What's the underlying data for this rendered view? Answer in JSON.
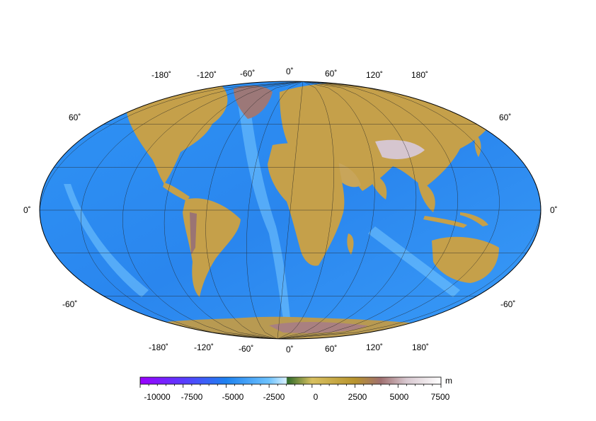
{
  "map": {
    "projection": "robinson",
    "colors": {
      "ocean_deep": "#1e6fe6",
      "ocean": "#2a8cf5",
      "ocean_shallow": "#6ec3ff",
      "land": "#c8a24a",
      "land_high": "#a6803c",
      "mountain": "#9c7a7a",
      "ice": "#f0f0f0",
      "grid": "#222222"
    },
    "graticule": {
      "longitudes": [
        -180,
        -150,
        -120,
        -90,
        -60,
        -30,
        0,
        30,
        60,
        90,
        120,
        150,
        180
      ],
      "latitudes": [
        -60,
        -30,
        0,
        30,
        60
      ]
    },
    "top_labels": [
      "-180˚",
      "-120˚",
      "-60˚",
      "0˚",
      "60˚",
      "120˚",
      "180˚"
    ],
    "bottom_labels": [
      "-180˚",
      "-120˚",
      "-60˚",
      "0˚",
      "60˚",
      "120˚",
      "180˚"
    ],
    "left_labels": [
      "60˚",
      "0˚",
      "-60˚"
    ],
    "right_labels": [
      "60˚",
      "0˚",
      "-60˚"
    ]
  },
  "colorbar": {
    "unit": "m",
    "range": [
      -10000,
      7500
    ],
    "ticks": [
      "-10000",
      "-7500",
      "-5000",
      "-2500",
      "0",
      "2500",
      "5000",
      "7500"
    ],
    "tick_values": [
      -10000,
      -7500,
      -5000,
      -2500,
      0,
      2500,
      5000,
      7500
    ],
    "stops": [
      {
        "v": -10000,
        "c": "#9a00ff"
      },
      {
        "v": -7500,
        "c": "#5a3cff"
      },
      {
        "v": -5000,
        "c": "#1e82f0"
      },
      {
        "v": -2500,
        "c": "#6ec3ff"
      },
      {
        "v": -1500,
        "c": "#d8f0ff"
      },
      {
        "v": -1450,
        "c": "#2f6b2a"
      },
      {
        "v": 0,
        "c": "#d8c060"
      },
      {
        "v": 2500,
        "c": "#b8942e"
      },
      {
        "v": 4000,
        "c": "#a07070"
      },
      {
        "v": 5500,
        "c": "#d8c8d0"
      },
      {
        "v": 7500,
        "c": "#ffffff"
      }
    ]
  }
}
